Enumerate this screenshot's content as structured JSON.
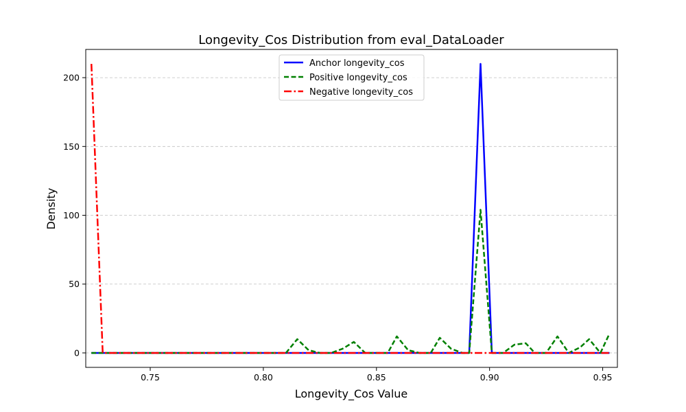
{
  "chart_data": {
    "type": "line",
    "title": "Longevity_Cos Distribution from eval_DataLoader",
    "xlabel": "Longevity_Cos Value",
    "ylabel": "Density",
    "xlim": [
      0.7215,
      0.9565
    ],
    "ylim": [
      -10.5,
      220.5
    ],
    "xticks": [
      0.75,
      0.8,
      0.85,
      0.9,
      0.95
    ],
    "xtick_labels": [
      "0.75",
      "0.80",
      "0.85",
      "0.90",
      "0.95"
    ],
    "yticks": [
      0,
      50,
      100,
      150,
      200
    ],
    "ytick_labels": [
      "0",
      "50",
      "100",
      "150",
      "200"
    ],
    "grid": "y-dashed",
    "legend_position": "upper-center",
    "series": [
      {
        "name": "Anchor longevity_cos",
        "color": "#0000ff",
        "style": "solid",
        "x": [
          0.724,
          0.891,
          0.896,
          0.901,
          0.953
        ],
        "y": [
          0,
          0,
          210,
          0,
          0
        ]
      },
      {
        "name": "Positive longevity_cos",
        "color": "#008000",
        "style": "dashed",
        "x": [
          0.724,
          0.81,
          0.815,
          0.82,
          0.825,
          0.83,
          0.835,
          0.84,
          0.845,
          0.85,
          0.855,
          0.859,
          0.864,
          0.869,
          0.874,
          0.878,
          0.883,
          0.888,
          0.891,
          0.896,
          0.901,
          0.906,
          0.911,
          0.916,
          0.92,
          0.925,
          0.93,
          0.935,
          0.94,
          0.944,
          0.949,
          0.953
        ],
        "y": [
          0,
          0,
          10,
          2,
          0,
          0,
          3,
          8,
          0,
          0,
          0,
          12,
          2,
          0,
          0,
          11,
          3,
          0,
          0,
          104,
          0,
          0,
          6,
          7,
          0,
          0,
          12,
          0,
          4,
          10,
          0,
          14
        ]
      },
      {
        "name": "Negative longevity_cos",
        "color": "#ff0000",
        "style": "dashdot",
        "x": [
          0.724,
          0.729,
          0.953
        ],
        "y": [
          210,
          0,
          0
        ]
      }
    ]
  }
}
